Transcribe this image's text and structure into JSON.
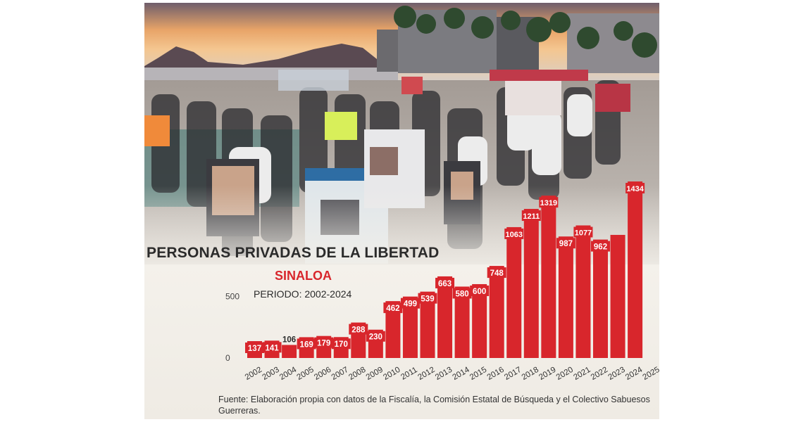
{
  "chart_data": {
    "type": "bar",
    "title": "PERSONAS PRIVADAS DE LA LIBERTAD",
    "subtitle": "SINALOA",
    "period": "PERIODO: 2002-2024",
    "source": "Fuente: Elaboración propia con datos de la Fiscalía, la Comisión Estatal de Búsqueda y el Colectivo Sabuesos Guerreras.",
    "categories": [
      "2002",
      "2003",
      "2004",
      "2005",
      "2006",
      "2007",
      "2008",
      "2009",
      "2010",
      "2011",
      "2012",
      "2013",
      "2014",
      "2015",
      "2016",
      "2017",
      "2018",
      "2019",
      "2020",
      "2021",
      "2022",
      "2023",
      "2024",
      "2025"
    ],
    "series": [
      {
        "values": [
          137,
          141,
          106,
          169,
          179,
          170,
          288,
          230,
          462,
          499,
          539,
          663,
          580,
          600,
          748,
          1063,
          1211,
          1319,
          987,
          1077,
          962,
          1000,
          1434,
          null
        ],
        "labels": [
          "137",
          "141",
          "106",
          "169",
          "179",
          "170",
          "288",
          "230",
          "462",
          "499",
          "539",
          "663",
          "580",
          "600",
          "748",
          "1063",
          "1211",
          "1319",
          "987",
          "1077",
          "962",
          "",
          "1434",
          ""
        ]
      }
    ],
    "y_ticks": [
      "0",
      "500"
    ],
    "ylim": [
      0,
      1500
    ],
    "grid": false,
    "bar_color": "#d8262c",
    "label_color": "#ffffff",
    "dark_label_color": "#2b2b2b"
  }
}
